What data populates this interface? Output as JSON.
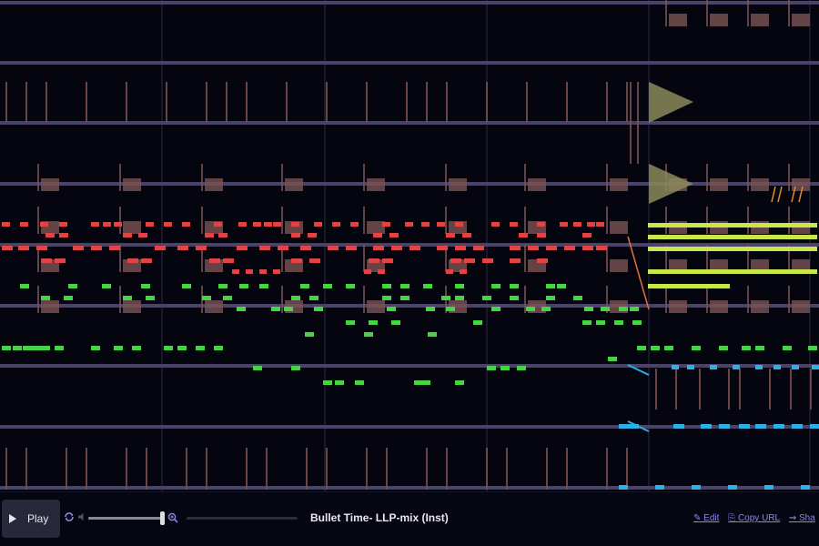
{
  "player": {
    "play_label": "Play",
    "title": "Bullet Time- LLP-mix (Inst)",
    "volume": 0.97,
    "progress": 0.0,
    "links": {
      "edit": "✎ Edit",
      "copy_url": "⎘ Copy URL",
      "share": "⇝ Sha"
    }
  },
  "colors": {
    "background": "#05050f",
    "track_line": "#4a4268",
    "beat_line": "#2c2c44",
    "drum": "#7a5252",
    "red_notes": "#e04444",
    "green_notes": "#44d444",
    "yellow_green_notes": "#c8e84a",
    "cyan_notes": "#2bb0e8",
    "triangle": "#8a8a5a",
    "accent_link": "#8e86e8"
  },
  "icons": {
    "play": "play-triangle-icon",
    "loop": "loop-icon",
    "volume": "speaker-icon",
    "zoom": "zoom-in-icon"
  }
}
